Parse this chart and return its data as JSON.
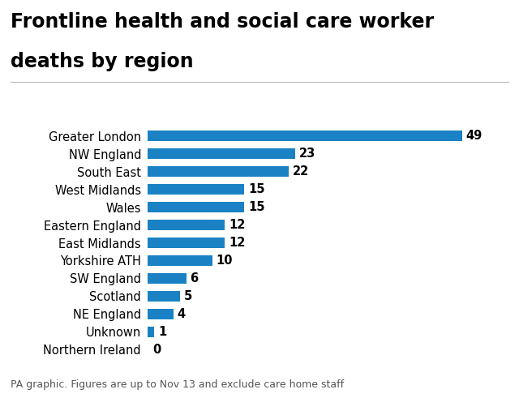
{
  "title_line1": "Frontline health and social care worker",
  "title_line2": "deaths by region",
  "categories": [
    "Greater London",
    "NW England",
    "South East",
    "West Midlands",
    "Wales",
    "Eastern England",
    "East Midlands",
    "Yorkshire ATH",
    "SW England",
    "Scotland",
    "NE England",
    "Unknown",
    "Northern Ireland"
  ],
  "values": [
    49,
    23,
    22,
    15,
    15,
    12,
    12,
    10,
    6,
    5,
    4,
    1,
    0
  ],
  "bar_color": "#1a82c4",
  "text_color": "#000000",
  "background_color": "#ffffff",
  "title_fontsize": 17,
  "label_fontsize": 10.5,
  "value_fontsize": 10.5,
  "footnote": "PA graphic. Figures are up to Nov 13 and exclude care home staff",
  "footnote_fontsize": 9,
  "xlim": [
    0,
    55
  ]
}
